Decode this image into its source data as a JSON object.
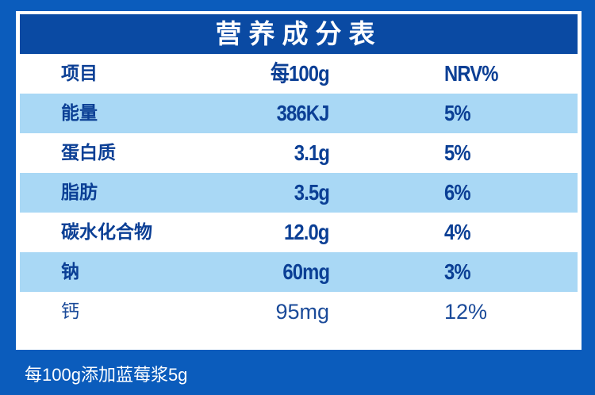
{
  "table": {
    "title": "营养成分表",
    "header": {
      "item": "项目",
      "per100g": "每100g",
      "nrv": "NRV%"
    },
    "rows": [
      {
        "item": "能量",
        "per100g": "386KJ",
        "nrv": "5%",
        "shaded": true
      },
      {
        "item": "蛋白质",
        "per100g": "3.1g",
        "nrv": "5%",
        "shaded": false
      },
      {
        "item": "脂肪",
        "per100g": "3.5g",
        "nrv": "6%",
        "shaded": true
      },
      {
        "item": "碳水化合物",
        "per100g": "12.0g",
        "nrv": "4%",
        "shaded": false
      },
      {
        "item": "钠",
        "per100g": "60mg",
        "nrv": "3%",
        "shaded": true
      },
      {
        "item": "钙",
        "per100g": "95mg",
        "nrv": "12%",
        "shaded": false
      }
    ]
  },
  "footnote": "每100g添加蓝莓浆5g",
  "colors": {
    "background": "#0b5cbc",
    "title_bar": "#0a4aa3",
    "row_shade": "#a9d8f5",
    "text": "#0b3f95"
  }
}
